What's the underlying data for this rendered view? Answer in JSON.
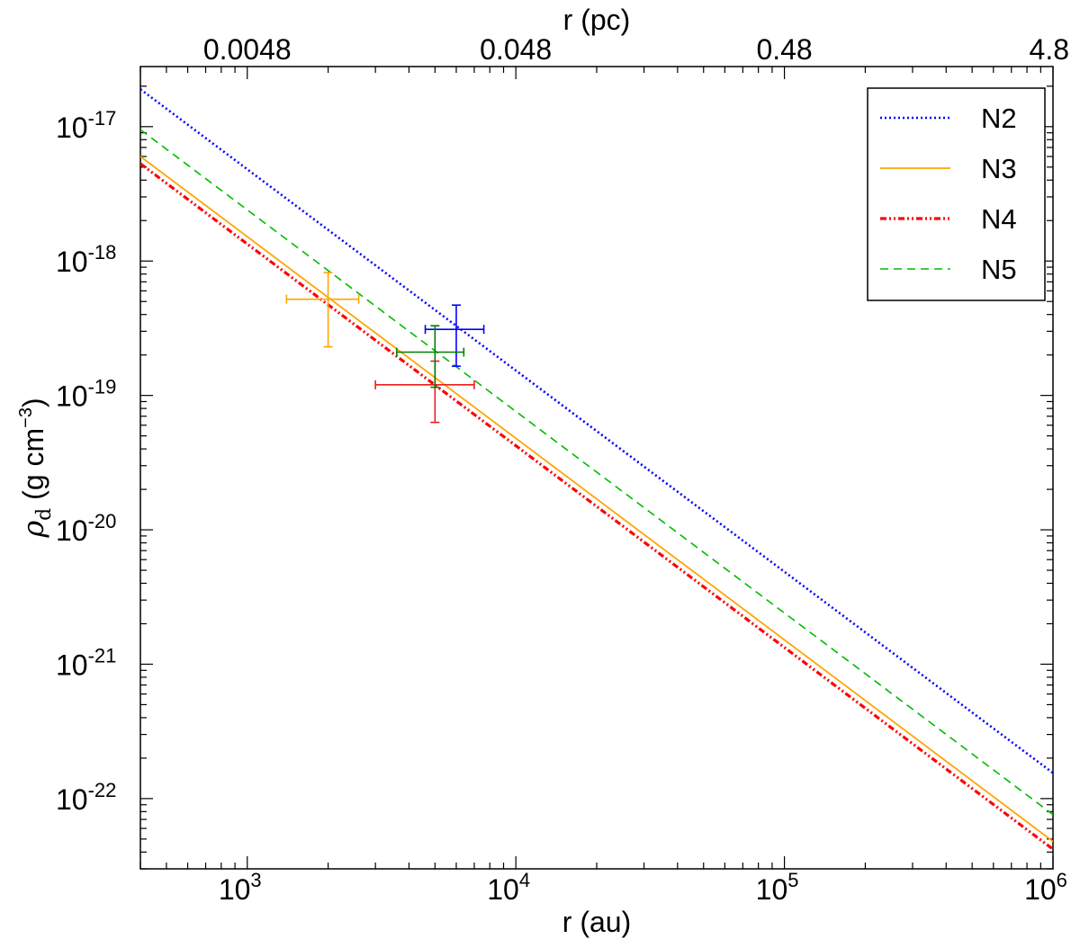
{
  "chart_data": {
    "type": "line",
    "xscale": "log",
    "yscale": "log",
    "xlabel": "r (au)",
    "x2label": "r (pc)",
    "ylabel": {
      "rho": "ρ",
      "sub": "d",
      "paren_open": " (g cm",
      "exp": "−3",
      "paren_close": ")"
    },
    "xlim": [
      400,
      1000000
    ],
    "ylim": [
      3e-23,
      2.8e-17
    ],
    "x_ticks": [
      {
        "value": 1000,
        "base": "10",
        "exp": "3"
      },
      {
        "value": 10000,
        "base": "10",
        "exp": "4"
      },
      {
        "value": 100000,
        "base": "10",
        "exp": "5"
      },
      {
        "value": 1000000,
        "base": "10",
        "exp": "6"
      }
    ],
    "y_ticks": [
      {
        "value": 1e-17,
        "base": "10",
        "exp": "-17"
      },
      {
        "value": 1e-18,
        "base": "10",
        "exp": "-18"
      },
      {
        "value": 1e-19,
        "base": "10",
        "exp": "-19"
      },
      {
        "value": 1e-20,
        "base": "10",
        "exp": "-20"
      },
      {
        "value": 1e-21,
        "base": "10",
        "exp": "-21"
      },
      {
        "value": 1e-22,
        "base": "10",
        "exp": "-22"
      }
    ],
    "x2_ticks": [
      {
        "value": 1000,
        "label": "0.0048"
      },
      {
        "value": 10000,
        "label": "0.048"
      },
      {
        "value": 100000,
        "label": "0.48"
      },
      {
        "value": 1000000,
        "label": "4.8"
      }
    ],
    "series": [
      {
        "name": "N2",
        "color": "#0000ff",
        "style": "dotted",
        "x": [
          400,
          1000000
        ],
        "y": [
          1.9e-17,
          1.55e-22
        ]
      },
      {
        "name": "N3",
        "color": "#ffa500",
        "style": "solid",
        "x": [
          400,
          1000000
        ],
        "y": [
          6e-18,
          4.8e-23
        ]
      },
      {
        "name": "N4",
        "color": "#ff0000",
        "style": "dashdotdot",
        "x": [
          400,
          1000000
        ],
        "y": [
          5.3e-18,
          4.2e-23
        ]
      },
      {
        "name": "N5",
        "color": "#00bb00",
        "style": "dashed",
        "x": [
          400,
          1000000
        ],
        "y": [
          9.5e-18,
          7.6e-23
        ]
      }
    ],
    "points": [
      {
        "name": "N2",
        "color": "#0000ff",
        "x": 6000,
        "y": 3.1e-19,
        "xerr": [
          4600,
          7600
        ],
        "yerr": [
          1.65e-19,
          4.7e-19
        ]
      },
      {
        "name": "N3",
        "color": "#ffa500",
        "x": 2000,
        "y": 5.2e-19,
        "xerr": [
          1400,
          2600
        ],
        "yerr": [
          2.3e-19,
          8.2e-19
        ]
      },
      {
        "name": "N4",
        "color": "#ee1c1c",
        "x": 5000,
        "y": 1.2e-19,
        "xerr": [
          3000,
          7000
        ],
        "yerr": [
          6.3e-20,
          1.8e-19
        ]
      },
      {
        "name": "N5",
        "color": "#008000",
        "x": 5000,
        "y": 2.1e-19,
        "xerr": [
          3600,
          6400
        ],
        "yerr": [
          1.15e-19,
          3.3e-19
        ]
      }
    ],
    "legend": {
      "position": "top-right",
      "entries": [
        "N2",
        "N3",
        "N4",
        "N5"
      ]
    },
    "grid": false
  }
}
